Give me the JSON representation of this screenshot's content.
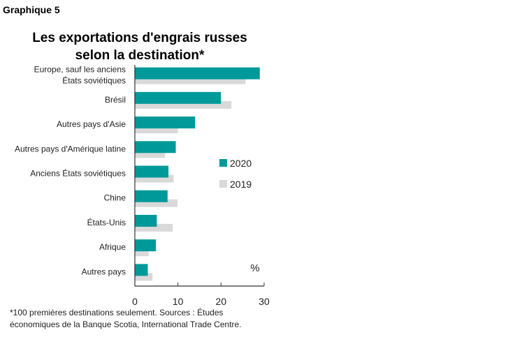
{
  "figure_label": "Graphique 5",
  "footnote": {
    "line1": "*100 premières destinations seulement. Sources : Études",
    "line2": "économiques de la Banque Scotia, International Trade Centre."
  },
  "colors": {
    "s2020": "#009999",
    "s2019": "#d9d9d9",
    "axis": "#333333"
  },
  "chart_data": {
    "type": "bar",
    "orientation": "horizontal",
    "title": [
      "Les exportations d'engrais russes",
      "selon la destination*"
    ],
    "unit_label": "%",
    "xlim": [
      0,
      30
    ],
    "xticks": [
      0,
      10,
      20,
      30
    ],
    "grid": false,
    "legend_position": "right",
    "categories": [
      [
        "Europe, sauf les anciens",
        "États soviétiques"
      ],
      [
        "Brésil"
      ],
      [
        "Autres pays d'Asie"
      ],
      [
        "Autres pays d'Amérique latine"
      ],
      [
        "Anciens États soviétiques"
      ],
      [
        "Chine"
      ],
      [
        "États-Unis"
      ],
      [
        "Afrique"
      ],
      [
        "Autres pays"
      ]
    ],
    "series": [
      {
        "name": "2020",
        "values": [
          29,
          20,
          14,
          9.5,
          7.8,
          7.6,
          5.1,
          4.9,
          3.0
        ]
      },
      {
        "name": "2019",
        "values": [
          25.7,
          22.4,
          10.0,
          7.0,
          9.0,
          9.9,
          8.8,
          3.2,
          4.1
        ]
      }
    ]
  }
}
